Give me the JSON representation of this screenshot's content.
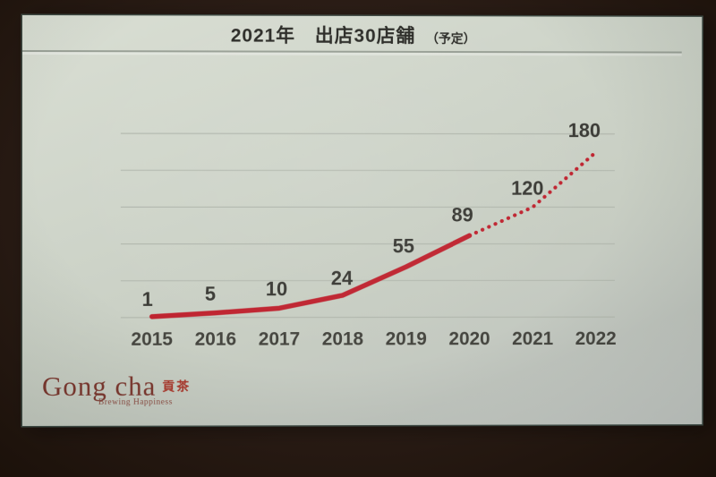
{
  "slide": {
    "title": {
      "main": "2021年　出店30店舗",
      "note": "（予定）"
    },
    "logo": {
      "wordmark": "Gong cha",
      "hanzi": "貢茶",
      "tagline": "Brewing Happiness"
    }
  },
  "chart_data": {
    "type": "line",
    "title": "2021年 出店30店舗（予定）",
    "categories": [
      "2015",
      "2016",
      "2017",
      "2018",
      "2019",
      "2020",
      "2021",
      "2022"
    ],
    "values": [
      1,
      5,
      10,
      24,
      55,
      89,
      120,
      180
    ],
    "projection_start_index": 5,
    "styles": {
      "actual": "solid",
      "projection": "dotted"
    },
    "line_color": "#bf2430",
    "label_color": "#3a3a35",
    "tick_color": "#45453f",
    "grid_color": "#b3b9af",
    "grid": true,
    "gridline_step": 40,
    "ylim": [
      0,
      200
    ],
    "xlabel": "",
    "ylabel": "",
    "legend": "none"
  }
}
